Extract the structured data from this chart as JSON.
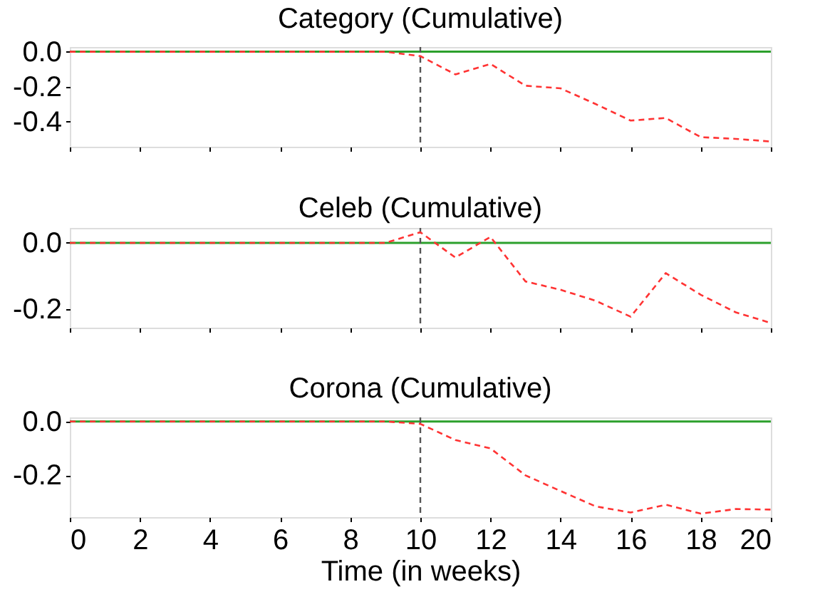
{
  "chart_data": [
    {
      "type": "line",
      "title": "Category (Cumulative)",
      "x": [
        0,
        1,
        2,
        3,
        4,
        5,
        6,
        7,
        8,
        9,
        10,
        11,
        12,
        13,
        14,
        15,
        16,
        17,
        18,
        19,
        20
      ],
      "series": [
        {
          "color": "#ff3333",
          "line_style": "dashed",
          "values": [
            0,
            0,
            0,
            0,
            0,
            0,
            0,
            0,
            0,
            0,
            -0.025,
            -0.13,
            -0.07,
            -0.195,
            -0.21,
            -0.3,
            -0.395,
            -0.38,
            -0.49,
            -0.5,
            -0.515
          ]
        }
      ],
      "xlim": [
        0,
        20
      ],
      "xticks": [
        0,
        2,
        4,
        6,
        8,
        10,
        12,
        14,
        16,
        18,
        20
      ],
      "ylim": [
        -0.545,
        0.027
      ],
      "yticks": [
        {
          "value": 0,
          "label": "0.0"
        },
        {
          "value": -0.2,
          "label": "-0.2"
        },
        {
          "value": -0.4,
          "label": "-0.4"
        }
      ],
      "ref_lines": [
        {
          "axis": "y",
          "value": 0,
          "color": "#2ca02c",
          "line_style": "solid"
        },
        {
          "axis": "x",
          "value": 10,
          "color": "#555555",
          "line_style": "dashed"
        }
      ],
      "tick_labels": "y",
      "grid": false
    },
    {
      "type": "line",
      "title": "Celeb (Cumulative)",
      "x": [
        0,
        1,
        2,
        3,
        4,
        5,
        6,
        7,
        8,
        9,
        10,
        11,
        12,
        13,
        14,
        15,
        16,
        17,
        18,
        19,
        20
      ],
      "series": [
        {
          "color": "#ff3333",
          "line_style": "dashed",
          "values": [
            0,
            0,
            0,
            0,
            0,
            0,
            0,
            0,
            0,
            0,
            0.032,
            -0.044,
            0.018,
            -0.116,
            -0.141,
            -0.174,
            -0.222,
            -0.091,
            -0.156,
            -0.209,
            -0.241
          ]
        }
      ],
      "xlim": [
        0,
        20
      ],
      "xticks": [
        0,
        2,
        4,
        6,
        8,
        10,
        12,
        14,
        16,
        18,
        20
      ],
      "ylim": [
        -0.255,
        0.045
      ],
      "yticks": [
        {
          "value": 0,
          "label": "0.0"
        },
        {
          "value": -0.2,
          "label": "-0.2"
        }
      ],
      "ref_lines": [
        {
          "axis": "y",
          "value": 0,
          "color": "#2ca02c",
          "line_style": "solid"
        },
        {
          "axis": "x",
          "value": 10,
          "color": "#555555",
          "line_style": "dashed"
        }
      ],
      "tick_labels": "y",
      "grid": false
    },
    {
      "type": "line",
      "title": "Corona (Cumulative)",
      "xlabel": "Time (in weeks)",
      "x": [
        0,
        1,
        2,
        3,
        4,
        5,
        6,
        7,
        8,
        9,
        10,
        11,
        12,
        13,
        14,
        15,
        16,
        17,
        18,
        19,
        20
      ],
      "series": [
        {
          "color": "#ff3333",
          "line_style": "dashed",
          "values": [
            0,
            0,
            0,
            0,
            0,
            0,
            0,
            0,
            0,
            0,
            -0.009,
            -0.069,
            -0.1,
            -0.2,
            -0.258,
            -0.315,
            -0.338,
            -0.309,
            -0.342,
            -0.325,
            -0.327
          ]
        }
      ],
      "xlim": [
        0,
        20
      ],
      "xticks": [
        0,
        2,
        4,
        6,
        8,
        10,
        12,
        14,
        16,
        18,
        20
      ],
      "ylim": [
        -0.355,
        0.015
      ],
      "yticks": [
        {
          "value": 0,
          "label": "0.0"
        },
        {
          "value": -0.2,
          "label": "-0.2"
        }
      ],
      "ref_lines": [
        {
          "axis": "y",
          "value": 0,
          "color": "#2ca02c",
          "line_style": "solid"
        },
        {
          "axis": "x",
          "value": 10,
          "color": "#555555",
          "line_style": "dashed"
        }
      ],
      "grid": false
    }
  ]
}
